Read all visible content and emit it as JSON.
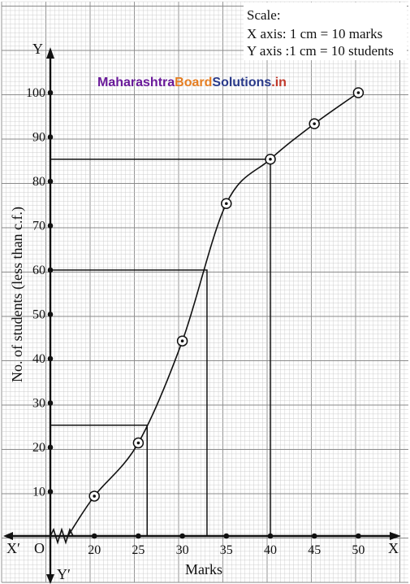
{
  "chart_data": {
    "type": "line",
    "scale": {
      "title": "Scale:",
      "x_line": "X axis: 1 cm = 10 marks",
      "y_line": "Y axis :1 cm = 10 students"
    },
    "watermark": {
      "part1": "Maharashtra",
      "part2": "Board",
      "part3": "Solutions",
      "part4": ".in",
      "color1": "#6a1a9a",
      "color2": "#e67e22",
      "color3": "#2a3a8a",
      "color4": "#c0392b"
    },
    "axis_labels": {
      "x_pos": "X",
      "x_neg": "X′",
      "y_pos": "Y",
      "y_neg": "Y′",
      "origin": "O"
    },
    "xlabel": "Marks",
    "ylabel": "No. of students (less than c.f.)",
    "xlim": [
      15,
      52
    ],
    "ylim": [
      0,
      100
    ],
    "x_ticks": [
      20,
      25,
      30,
      35,
      40,
      45,
      50
    ],
    "y_ticks": [
      10,
      20,
      30,
      40,
      50,
      60,
      70,
      80,
      90,
      100
    ],
    "points": [
      {
        "x": 20,
        "y": 9
      },
      {
        "x": 25,
        "y": 21
      },
      {
        "x": 30,
        "y": 44
      },
      {
        "x": 35,
        "y": 75
      },
      {
        "x": 40,
        "y": 85
      },
      {
        "x": 45,
        "y": 93
      },
      {
        "x": 50,
        "y": 100
      }
    ],
    "curve_start": {
      "x": 17,
      "y": 0
    },
    "guide_lines": [
      {
        "y": 25,
        "x": 26
      },
      {
        "y": 60,
        "x": 32.8
      },
      {
        "y": 85,
        "x": 40
      }
    ],
    "grid": true,
    "colors": {
      "grid_minor": "#c9c9c9",
      "grid_major": "#8a8a8a",
      "ink": "#111111"
    }
  }
}
